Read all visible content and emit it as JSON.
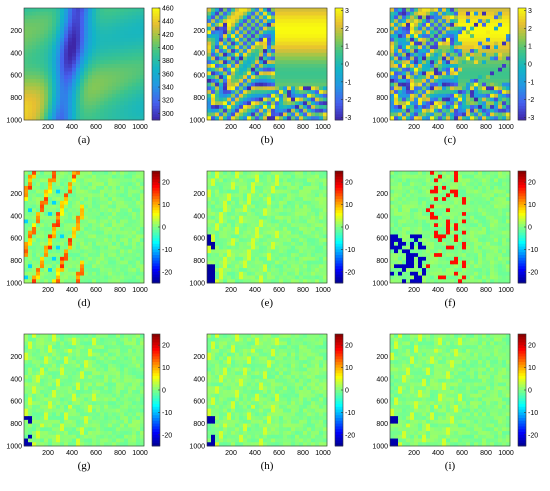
{
  "chart_data": [
    {
      "type": "heatmap",
      "label": "(a)",
      "xticks": [
        200,
        400,
        600,
        800,
        1000
      ],
      "yticks": [
        200,
        400,
        600,
        800,
        1000
      ],
      "colorbar_ticks": [
        300,
        320,
        340,
        360,
        380,
        400,
        420,
        440,
        460
      ],
      "clim": [
        290,
        460
      ],
      "colormap": "parula",
      "pattern": "smooth"
    },
    {
      "type": "heatmap",
      "label": "(b)",
      "xticks": [
        200,
        400,
        600,
        800,
        1000
      ],
      "yticks": [
        200,
        400,
        600,
        800,
        1000
      ],
      "colorbar_ticks": [
        3,
        2,
        1,
        0,
        -1,
        -2,
        -3
      ],
      "clim": [
        -3.14,
        3.14
      ],
      "colormap": "parula",
      "pattern": "wrapped"
    },
    {
      "type": "heatmap",
      "label": "(c)",
      "xticks": [
        200,
        400,
        600,
        800,
        1000
      ],
      "yticks": [
        200,
        400,
        600,
        800,
        1000
      ],
      "colorbar_ticks": [
        3,
        2,
        1,
        0,
        -1,
        -2,
        -3
      ],
      "clim": [
        -3.14,
        3.14
      ],
      "colormap": "parula",
      "pattern": "wrapped-noisy"
    },
    {
      "type": "heatmap",
      "label": "(d)",
      "xticks": [
        200,
        400,
        600,
        800,
        1000
      ],
      "yticks": [
        200,
        400,
        600,
        800,
        1000
      ],
      "colorbar_ticks": [
        20,
        10,
        0,
        -10,
        -20
      ],
      "clim": [
        -25,
        25
      ],
      "colormap": "jet",
      "pattern": "error-d"
    },
    {
      "type": "heatmap",
      "label": "(e)",
      "xticks": [
        200,
        400,
        600,
        800,
        1000
      ],
      "yticks": [
        200,
        400,
        600,
        800,
        1000
      ],
      "colorbar_ticks": [
        20,
        10,
        0,
        -10,
        -20
      ],
      "clim": [
        -25,
        25
      ],
      "colormap": "jet",
      "pattern": "error-e"
    },
    {
      "type": "heatmap",
      "label": "(f)",
      "xticks": [
        200,
        400,
        600,
        800,
        1000
      ],
      "yticks": [
        200,
        400,
        600,
        800,
        1000
      ],
      "colorbar_ticks": [
        20,
        10,
        0,
        -10,
        -20
      ],
      "clim": [
        -25,
        25
      ],
      "colormap": "jet",
      "pattern": "error-f"
    },
    {
      "type": "heatmap",
      "label": "(g)",
      "xticks": [
        200,
        400,
        600,
        800,
        1000
      ],
      "yticks": [
        200,
        400,
        600,
        800,
        1000
      ],
      "colorbar_ticks": [
        20,
        10,
        0,
        -10,
        -20
      ],
      "clim": [
        -25,
        25
      ],
      "colormap": "jet",
      "pattern": "error-g"
    },
    {
      "type": "heatmap",
      "label": "(h)",
      "xticks": [
        200,
        400,
        600,
        800,
        1000
      ],
      "yticks": [
        200,
        400,
        600,
        800,
        1000
      ],
      "colorbar_ticks": [
        20,
        10,
        0,
        -10,
        -20
      ],
      "clim": [
        -25,
        25
      ],
      "colormap": "jet",
      "pattern": "error-h"
    },
    {
      "type": "heatmap",
      "label": "(i)",
      "xticks": [
        200,
        400,
        600,
        800,
        1000
      ],
      "yticks": [
        200,
        400,
        600,
        800,
        1000
      ],
      "colorbar_ticks": [
        20,
        10,
        0,
        -10,
        -20
      ],
      "clim": [
        -25,
        25
      ],
      "colormap": "jet",
      "pattern": "error-i"
    }
  ]
}
